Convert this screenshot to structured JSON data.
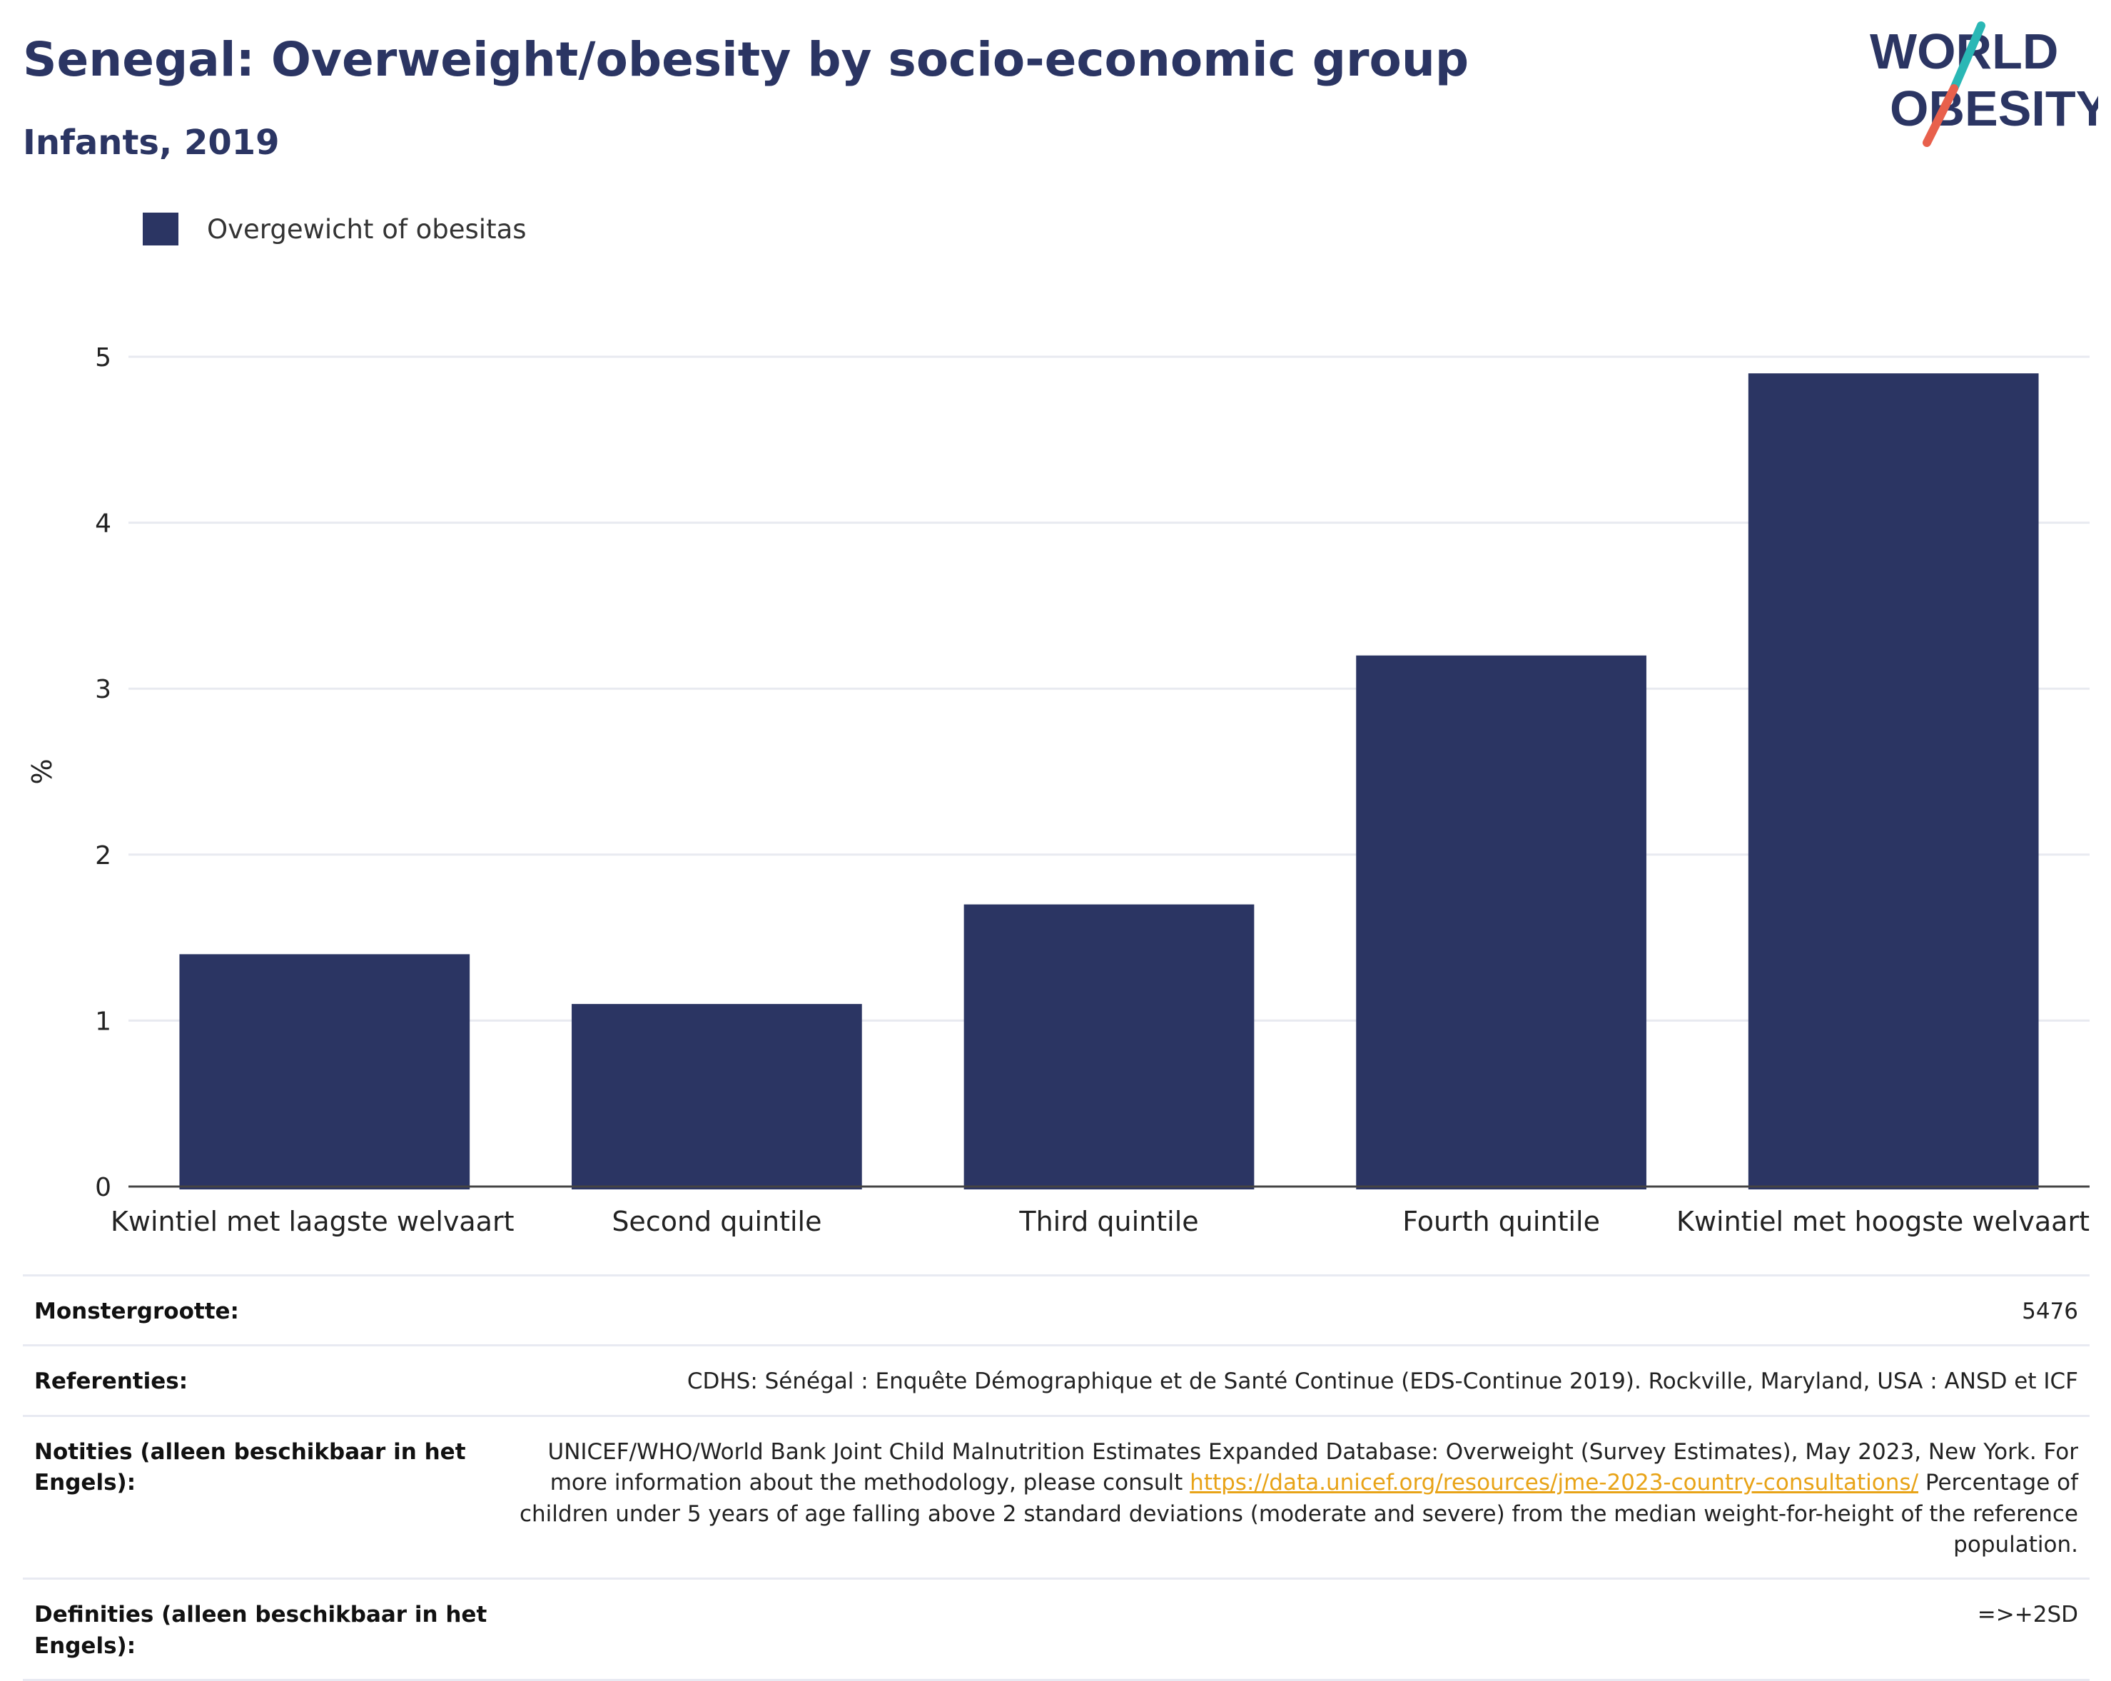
{
  "header": {
    "title": "Senegal: Overweight/obesity by socio-economic group",
    "subtitle": "Infants, 2019"
  },
  "logo": {
    "line1": "WORLD",
    "line2": "OBESITY"
  },
  "colors": {
    "bar": "#2b3563",
    "title": "#2b3563",
    "grid": "#e8eaf0",
    "logo_teal": "#2ab7b5",
    "logo_coral": "#e8604c",
    "link": "#e8a317"
  },
  "chart_data": {
    "type": "bar",
    "title": "Senegal: Overweight/obesity by socio-economic group",
    "subtitle": "Infants, 2019",
    "xlabel": "",
    "ylabel": "%",
    "ylim": [
      0,
      5
    ],
    "yticks": [
      "0",
      "1",
      "2",
      "3",
      "4",
      "5"
    ],
    "grid": true,
    "legend_position": "top-left",
    "categories": [
      "Kwintiel met laagste welvaart",
      "Second quintile",
      "Third quintile",
      "Fourth quintile",
      "Kwintiel met hoogste welvaart"
    ],
    "series": [
      {
        "name": "Overgewicht of obesitas",
        "values": [
          1.4,
          1.1,
          1.7,
          3.2,
          4.9
        ]
      }
    ]
  },
  "meta": {
    "sample_size": {
      "key": "Monstergrootte:",
      "value": "5476"
    },
    "references": {
      "key": "Referenties:",
      "value": "CDHS: Sénégal : Enquête Démographique et de Santé Continue (EDS-Continue 2019). Rockville, Maryland, USA : ANSD et ICF"
    },
    "notes": {
      "key": "Notities (alleen beschikbaar in het Engels):",
      "value_before_link": "UNICEF/WHO/World Bank Joint Child Malnutrition Estimates Expanded Database: Overweight (Survey Estimates), May 2023, New York. For more information about the methodology, please consult ",
      "link": "https://data.unicef.org/resources/jme-2023-country-consultations/",
      "value_after_link": " Percentage of children under 5 years of age falling above 2 standard deviations (moderate and severe) from the median weight-for-height of the reference population."
    },
    "definitions": {
      "key": "Definities (alleen beschikbaar in het Engels):",
      "value": "=>+2SD"
    }
  }
}
